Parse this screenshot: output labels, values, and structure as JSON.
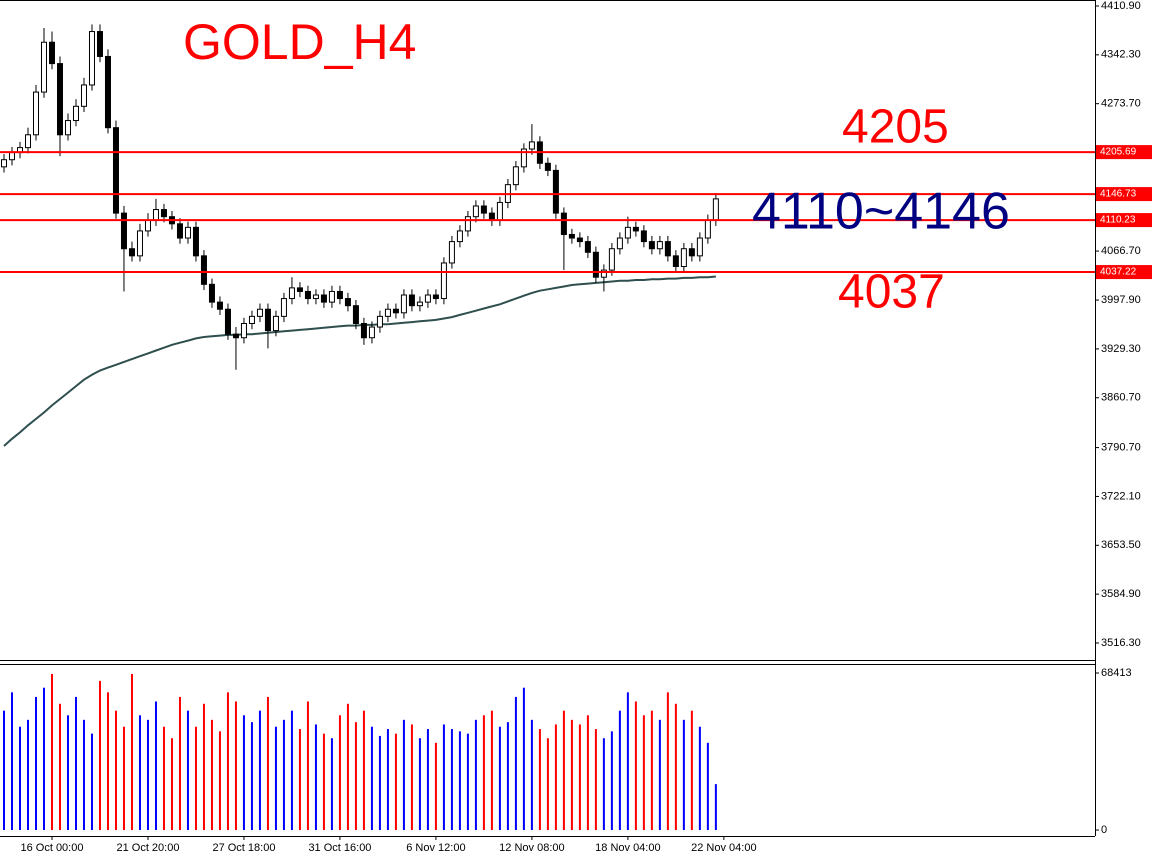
{
  "chart_data": {
    "type": "candlestick",
    "title": "GOLD_H4",
    "title_color": "#ff0000",
    "up_color": "#0000ff",
    "down_color": "#ff0000",
    "ma_color": "#2f4f4f",
    "open": [
      4185,
      4195,
      4205,
      4212,
      4230,
      4290,
      4360,
      4330,
      4230,
      4250,
      4270,
      4300,
      4375,
      4340,
      4240,
      4120,
      4070,
      4060,
      4095,
      4110,
      4125,
      4115,
      4105,
      4085,
      4100,
      4060,
      4020,
      3995,
      3985,
      3950,
      3945,
      3965,
      3975,
      3985,
      3955,
      3975,
      4000,
      4015,
      4010,
      4000,
      4005,
      3995,
      4010,
      4000,
      3990,
      3965,
      3945,
      3960,
      3975,
      3985,
      3980,
      4005,
      3990,
      3995,
      4005,
      4000,
      4050,
      4080,
      4095,
      4115,
      4130,
      4120,
      4110,
      4135,
      4160,
      4185,
      4210,
      4220,
      4190,
      4180,
      4120,
      4090,
      4085,
      4080,
      4065,
      4030,
      4040,
      4070,
      4085,
      4100,
      4095,
      4080,
      4070,
      4080,
      4060,
      4045,
      4070,
      4060,
      4085,
      4110
    ],
    "high": [
      4203,
      4213,
      4220,
      4240,
      4300,
      4380,
      4375,
      4340,
      4260,
      4280,
      4310,
      4385,
      4385,
      4350,
      4250,
      4130,
      4080,
      4105,
      4120,
      4140,
      4133,
      4123,
      4113,
      4108,
      4108,
      4068,
      4028,
      4003,
      3993,
      3960,
      3973,
      3983,
      3993,
      3993,
      3983,
      4008,
      4030,
      4023,
      4018,
      4013,
      4013,
      4018,
      4018,
      4008,
      3998,
      3973,
      3968,
      3983,
      3993,
      3993,
      4013,
      4013,
      4003,
      4013,
      4013,
      4058,
      4088,
      4103,
      4123,
      4138,
      4138,
      4128,
      4143,
      4168,
      4193,
      4218,
      4245,
      4228,
      4198,
      4188,
      4128,
      4098,
      4093,
      4088,
      4073,
      4048,
      4078,
      4093,
      4115,
      4108,
      4103,
      4088,
      4088,
      4088,
      4068,
      4078,
      4078,
      4093,
      4118,
      4148
    ],
    "low": [
      4177,
      4187,
      4197,
      4204,
      4222,
      4282,
      4322,
      4200,
      4222,
      4242,
      4262,
      4292,
      4332,
      4232,
      4112,
      4010,
      4052,
      4052,
      4087,
      4102,
      4107,
      4097,
      4077,
      4077,
      4052,
      4012,
      3987,
      3977,
      3942,
      3900,
      3937,
      3957,
      3967,
      3930,
      3947,
      3967,
      3992,
      4002,
      3992,
      3992,
      3987,
      3987,
      3992,
      3982,
      3957,
      3935,
      3937,
      3952,
      3967,
      3972,
      3972,
      3982,
      3982,
      3987,
      3992,
      3992,
      4042,
      4072,
      4087,
      4107,
      4112,
      4102,
      4102,
      4127,
      4152,
      4177,
      4202,
      4182,
      4172,
      4112,
      4040,
      4077,
      4072,
      4057,
      4022,
      4010,
      4032,
      4062,
      4077,
      4087,
      4072,
      4062,
      4062,
      4052,
      4037,
      4037,
      4052,
      4052,
      4077,
      4102
    ],
    "close": [
      4195,
      4205,
      4212,
      4230,
      4290,
      4360,
      4330,
      4230,
      4250,
      4270,
      4300,
      4375,
      4340,
      4240,
      4120,
      4070,
      4060,
      4095,
      4110,
      4125,
      4115,
      4105,
      4085,
      4100,
      4060,
      4020,
      3995,
      3985,
      3950,
      3945,
      3965,
      3975,
      3985,
      3955,
      3975,
      4000,
      4015,
      4010,
      4000,
      4005,
      3995,
      4010,
      4000,
      3990,
      3965,
      3945,
      3960,
      3975,
      3985,
      3980,
      4005,
      3990,
      3995,
      4005,
      4000,
      4050,
      4080,
      4095,
      4115,
      4130,
      4120,
      4110,
      4135,
      4160,
      4185,
      4210,
      4220,
      4190,
      4180,
      4120,
      4090,
      4085,
      4080,
      4065,
      4030,
      4040,
      4070,
      4085,
      4100,
      4095,
      4080,
      4070,
      4080,
      4060,
      4045,
      4070,
      4060,
      4085,
      4110,
      4140
    ],
    "ma_values": [
      3793,
      3803,
      3812,
      3822,
      3831,
      3840,
      3850,
      3859,
      3868,
      3877,
      3886,
      3893,
      3899,
      3903,
      3907,
      3911,
      3915,
      3919,
      3923,
      3927,
      3931,
      3935,
      3938,
      3941,
      3944,
      3946,
      3947,
      3948,
      3949,
      3949,
      3950,
      3950,
      3951,
      3952,
      3953,
      3954,
      3955,
      3956,
      3957,
      3958,
      3959,
      3960,
      3961,
      3962,
      3962,
      3963,
      3963,
      3964,
      3964,
      3965,
      3966,
      3967,
      3968,
      3969,
      3970,
      3972,
      3974,
      3977,
      3980,
      3983,
      3986,
      3989,
      3992,
      3996,
      4000,
      4004,
      4008,
      4011,
      4013,
      4015,
      4017,
      4019,
      4020,
      4021,
      4022,
      4023,
      4024,
      4025,
      4025,
      4026,
      4026,
      4027,
      4027,
      4028,
      4028,
      4029,
      4029,
      4030,
      4030,
      4031
    ],
    "volume": [
      52000,
      60000,
      45000,
      48000,
      58000,
      62000,
      68000,
      55000,
      50000,
      58000,
      48000,
      42000,
      65000,
      60000,
      52000,
      45000,
      68000,
      50000,
      48000,
      56000,
      45000,
      40000,
      58000,
      52000,
      45000,
      55000,
      48000,
      43000,
      60000,
      56000,
      50000,
      47000,
      52000,
      58000,
      45000,
      48000,
      52000,
      44000,
      56000,
      46000,
      42000,
      40000,
      50000,
      55000,
      47000,
      52000,
      45000,
      41000,
      44000,
      42000,
      48000,
      46000,
      40000,
      44000,
      38000,
      46000,
      44000,
      43000,
      42000,
      48000,
      50000,
      52000,
      45000,
      47000,
      58000,
      62000,
      48000,
      44000,
      40000,
      46000,
      52000,
      48000,
      46000,
      50000,
      44000,
      40000,
      43000,
      52000,
      60000,
      56000,
      50000,
      52000,
      48000,
      60000,
      55000,
      48000,
      52000,
      45000,
      38000,
      20000
    ],
    "xlim": [
      -0.5,
      136.4
    ],
    "xticks": [
      {
        "value": 6,
        "label": "16 Oct 00:00"
      },
      {
        "value": 18,
        "label": "21 Oct 20:00"
      },
      {
        "value": 30,
        "label": "27 Oct 18:00"
      },
      {
        "value": 42,
        "label": "31 Oct 16:00"
      },
      {
        "value": 54,
        "label": "6 Nov 12:00"
      },
      {
        "value": 66,
        "label": "12 Nov 08:00"
      },
      {
        "value": 78,
        "label": "18 Nov 04:00"
      },
      {
        "value": 90,
        "label": "22 Nov 04:00"
      }
    ],
    "ylim": [
      3492.4,
      4419.3
    ],
    "yticks": [
      {
        "value": 4410.9,
        "label": "4410.90"
      },
      {
        "value": 4342.3,
        "label": "4342.30"
      },
      {
        "value": 4273.7,
        "label": "4273.70"
      },
      {
        "value": 4066.7,
        "label": "4066.70"
      },
      {
        "value": 3997.9,
        "label": "3997.90"
      },
      {
        "value": 3929.3,
        "label": "3929.30"
      },
      {
        "value": 3860.7,
        "label": "3860.70"
      },
      {
        "value": 3790.7,
        "label": "3790.70"
      },
      {
        "value": 3722.1,
        "label": "3722.10"
      },
      {
        "value": 3653.5,
        "label": "3653.50"
      },
      {
        "value": 3584.9,
        "label": "3584.90"
      },
      {
        "value": 3516.3,
        "label": "3516.30"
      }
    ],
    "volume_ylim": [
      -2600,
      71900
    ],
    "volume_ticks": [
      68413,
      0
    ],
    "levels": [
      4205.69,
      4146.73,
      4110.23,
      4037.22
    ],
    "level_color": "#ff0000",
    "annotations": [
      {
        "text": "4205",
        "color": "#ff0000"
      },
      {
        "text": "4110~4146",
        "color": "#000080"
      },
      {
        "text": "4037",
        "color": "#ff0000"
      }
    ]
  }
}
